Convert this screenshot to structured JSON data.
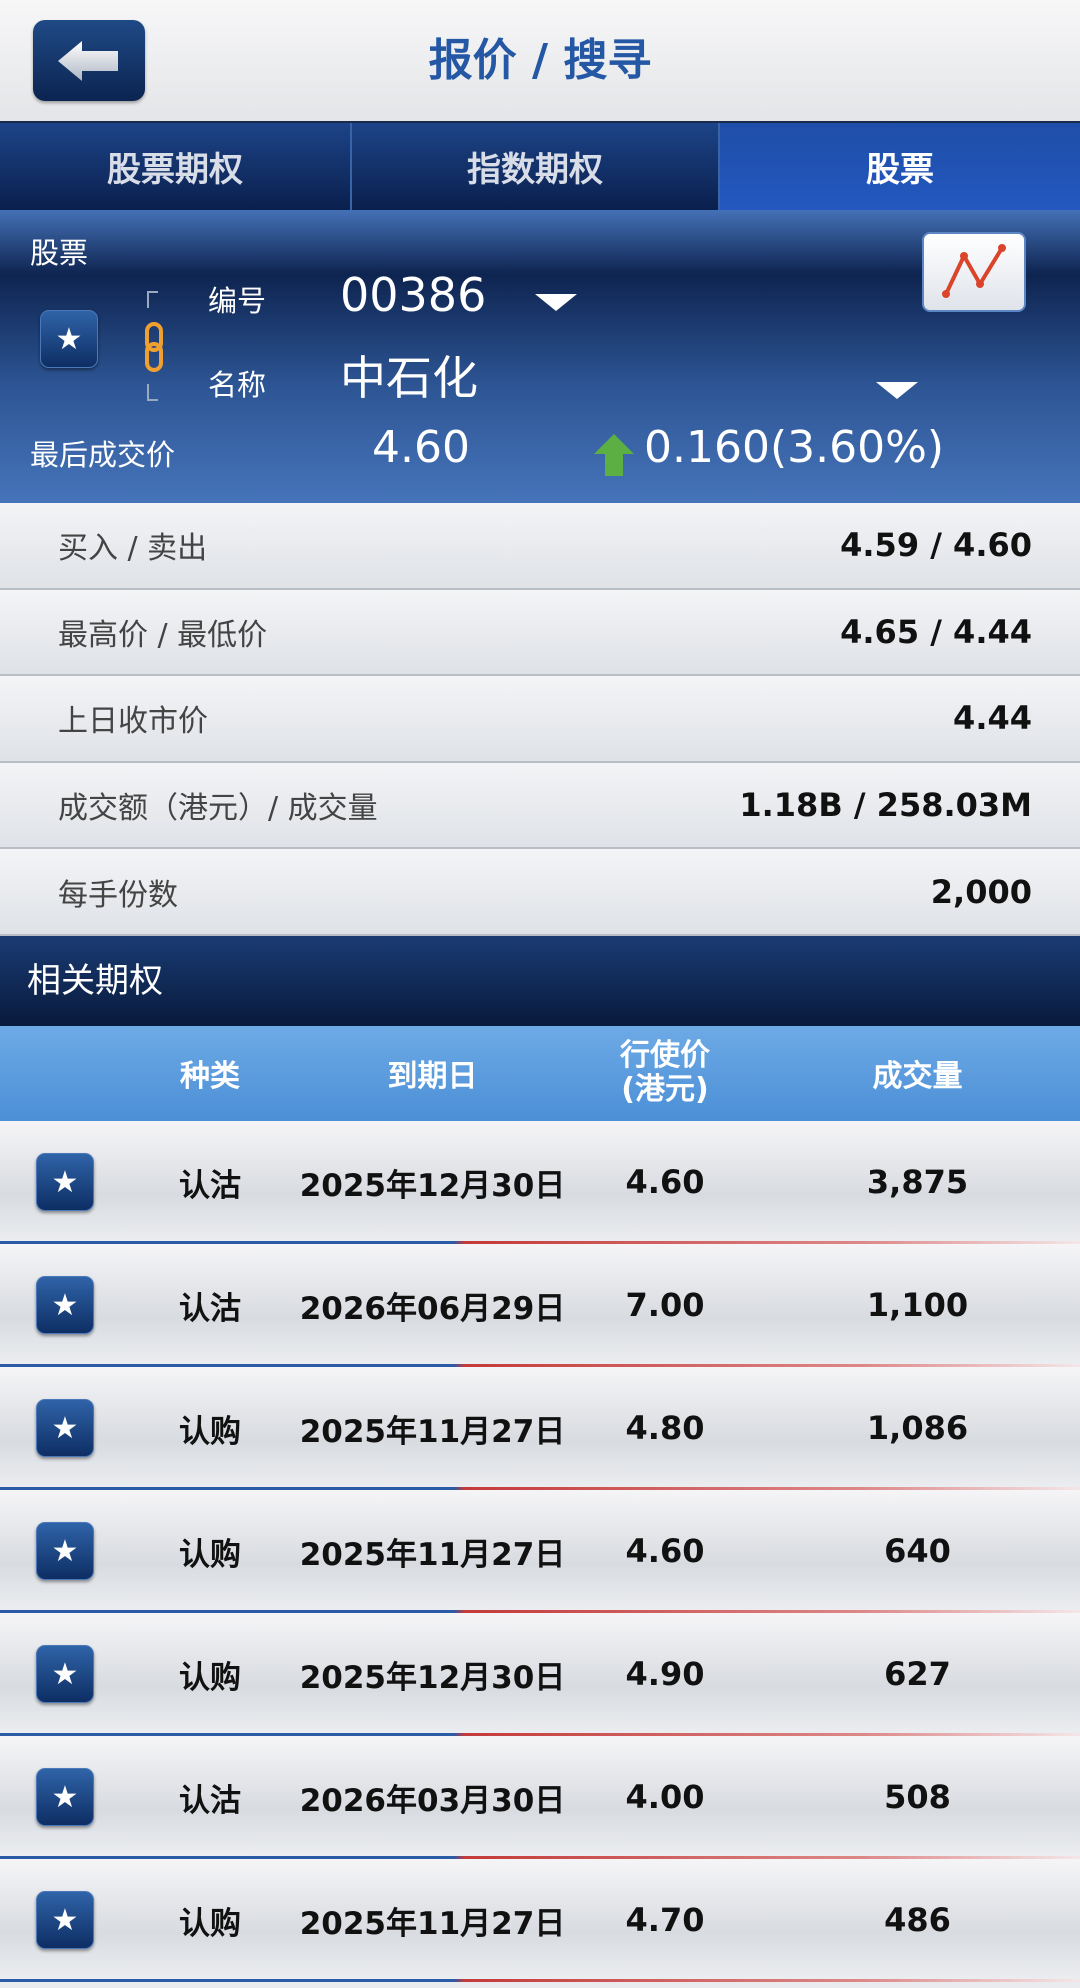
{
  "header": {
    "title": "报价 / 搜寻",
    "back_icon": "arrow-left-icon"
  },
  "tabs": [
    {
      "label": "股票期权"
    },
    {
      "label": "指数期权"
    },
    {
      "label": "股票",
      "active": true
    }
  ],
  "stock": {
    "section_label": "股票",
    "code_label": "编号",
    "code": "00386",
    "name_label": "名称",
    "name": "中石化",
    "last_label": "最后成交价",
    "last": "4.60",
    "change": "0.160(3.60%)",
    "direction": "up",
    "up_color": "#5cb043"
  },
  "details": [
    {
      "key": "买入 / 卖出",
      "value": "4.59 / 4.60"
    },
    {
      "key": "最高价 / 最低价",
      "value": "4.65 / 4.44"
    },
    {
      "key": "上日收市价",
      "value": "4.44"
    },
    {
      "key": "成交额（港元）/ 成交量",
      "value": "1.18B / 258.03M"
    },
    {
      "key": "每手份数",
      "value": "2,000"
    }
  ],
  "related": {
    "title": "相关期权",
    "columns": [
      "种类",
      "到期日",
      "行使价\n(港元)",
      "成交量"
    ],
    "col3a": "行使价",
    "col3b": "(港元)",
    "rows": [
      {
        "type": "认沽",
        "expiry": "2025年12月30日",
        "strike": "4.60",
        "volume": "3,875"
      },
      {
        "type": "认沽",
        "expiry": "2026年06月29日",
        "strike": "7.00",
        "volume": "1,100"
      },
      {
        "type": "认购",
        "expiry": "2025年11月27日",
        "strike": "4.80",
        "volume": "1,086"
      },
      {
        "type": "认购",
        "expiry": "2025年11月27日",
        "strike": "4.60",
        "volume": "640"
      },
      {
        "type": "认购",
        "expiry": "2025年12月30日",
        "strike": "4.90",
        "volume": "627"
      },
      {
        "type": "认沽",
        "expiry": "2026年03月30日",
        "strike": "4.00",
        "volume": "508"
      },
      {
        "type": "认购",
        "expiry": "2025年11月27日",
        "strike": "4.70",
        "volume": "486"
      }
    ]
  }
}
